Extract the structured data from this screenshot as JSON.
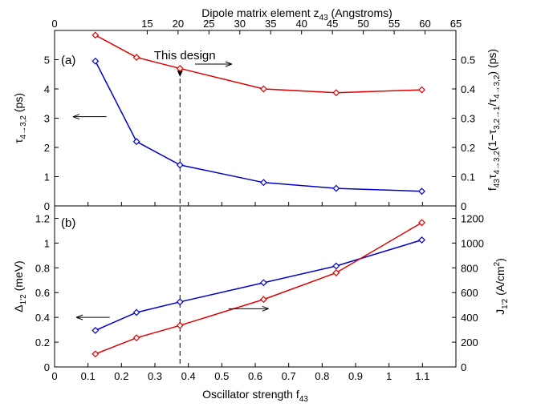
{
  "chart_data": [
    {
      "panel_label": "(a)",
      "type": "line",
      "top_axis": {
        "label_main": "Dipole matrix element z",
        "label_sub": "43",
        "label_unit": " (Angstroms)",
        "range": [
          0,
          65
        ],
        "ticks": [
          0,
          15,
          20,
          25,
          30,
          35,
          40,
          45,
          50,
          55,
          60,
          65
        ]
      },
      "x": [
        0.122,
        0.245,
        0.375,
        0.625,
        0.842,
        1.098
      ],
      "xlim": [
        0,
        1.2
      ],
      "left_axis": {
        "label_main": "τ",
        "label_sub": "4→3,2",
        "label_unit": " (ps)",
        "range": [
          0,
          6
        ],
        "ticks": [
          0,
          1,
          2,
          3,
          4,
          5
        ]
      },
      "right_axis": {
        "label_main": "f",
        "label_sub1": "43",
        "label_mid": "τ",
        "label_sub2": "4→3,2",
        "label_mid2": "(1−τ",
        "label_sub3": "3,2→1",
        "label_mid3": "/τ",
        "label_sub4": "4→3,2",
        "label_unit": ") (ps)",
        "range": [
          0,
          0.6
        ],
        "ticks": [
          0,
          0.1,
          0.2,
          0.3,
          0.4,
          0.5
        ]
      },
      "series": [
        {
          "axis": "left",
          "color": "#0000cc",
          "values": [
            4.95,
            2.2,
            1.4,
            0.8,
            0.6,
            0.5
          ]
        },
        {
          "axis": "right",
          "color": "#e00000",
          "values": [
            0.584,
            0.508,
            0.47,
            0.4,
            0.387,
            0.397
          ]
        }
      ],
      "arrows": [
        {
          "dir": "left",
          "from": [
            0.155,
            3.05
          ],
          "to": [
            0.055,
            3.05
          ]
        },
        {
          "dir": "right",
          "from": [
            0.42,
            4.85
          ],
          "to": [
            0.53,
            4.85
          ]
        }
      ],
      "annotation": {
        "text": "This design",
        "x": 0.375
      }
    },
    {
      "panel_label": "(b)",
      "type": "line",
      "x": [
        0.122,
        0.245,
        0.375,
        0.625,
        0.842,
        1.098
      ],
      "xlim": [
        0,
        1.2
      ],
      "bottom_axis": {
        "label_main": "Oscillator strength f",
        "label_sub": "43",
        "ticks": [
          0,
          0.1,
          0.2,
          0.3,
          0.4,
          0.5,
          0.6,
          0.7,
          0.8,
          0.9,
          1,
          1.1
        ]
      },
      "left_axis": {
        "label_main": "Δ",
        "label_sub": "1'2",
        "label_unit": " (meV)",
        "range": [
          0,
          1.3
        ],
        "ticks": [
          0,
          0.2,
          0.4,
          0.6,
          0.8,
          1,
          1.2
        ]
      },
      "right_axis": {
        "label_main": "J",
        "label_sub": "1'2",
        "label_unit": " (A/cm",
        "label_sup": "2",
        "label_close": ")",
        "range": [
          0,
          1300
        ],
        "ticks": [
          0,
          200,
          400,
          600,
          800,
          1000,
          1200
        ]
      },
      "series": [
        {
          "axis": "left",
          "color": "#0000cc",
          "values": [
            0.295,
            0.44,
            0.525,
            0.68,
            0.815,
            1.025
          ]
        },
        {
          "axis": "right",
          "color": "#e00000",
          "values": [
            105,
            235,
            335,
            545,
            760,
            1165
          ]
        }
      ],
      "arrows": [
        {
          "dir": "left",
          "from": [
            0.165,
            0.4
          ],
          "to": [
            0.065,
            0.4
          ]
        },
        {
          "dir": "right",
          "from": [
            0.52,
            0.47
          ],
          "to": [
            0.64,
            0.47
          ]
        }
      ]
    }
  ]
}
